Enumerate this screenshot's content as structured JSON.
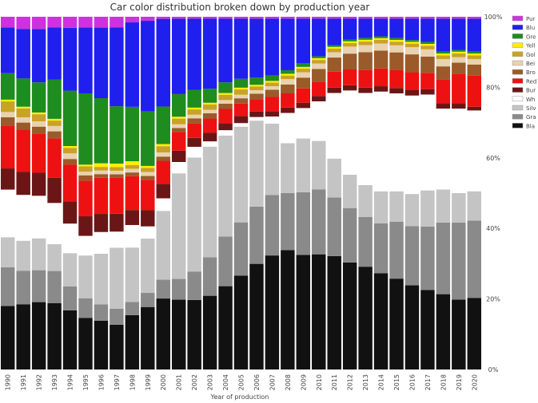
{
  "chart_data": {
    "type": "bar",
    "stacked": true,
    "title": "Car color distribution broken down by production year",
    "xlabel": "Year of production",
    "ylabel": "",
    "ylim": [
      0,
      100
    ],
    "yticks": [
      "0%",
      "20%",
      "40%",
      "60%",
      "80%",
      "100%"
    ],
    "grid": false,
    "legend_position": "right",
    "categories": [
      "1990",
      "1991",
      "1992",
      "1993",
      "1994",
      "1995",
      "1996",
      "1997",
      "1998",
      "1999",
      "2000",
      "2001",
      "2002",
      "2003",
      "2004",
      "2005",
      "2006",
      "2007",
      "2008",
      "2009",
      "2010",
      "2011",
      "2012",
      "2013",
      "2014",
      "2015",
      "2016",
      "2017",
      "2018",
      "2019",
      "2020"
    ],
    "series": [
      {
        "name": "Black",
        "legend_label": "Bla",
        "color": "#111111",
        "values": [
          18,
          18.5,
          19,
          18.5,
          16,
          14.5,
          13.5,
          12.5,
          14.5,
          15.5,
          17,
          18.5,
          19.5,
          21,
          23.5,
          26.5,
          29.5,
          32,
          33.5,
          32,
          32,
          32,
          30.5,
          29,
          27,
          25.5,
          23.5,
          22,
          20.5,
          19,
          19.5
        ]
      },
      {
        "name": "Gray",
        "legend_label": "Gra",
        "color": "#8a8a8a",
        "values": [
          11,
          9.5,
          9,
          9,
          6.5,
          5.5,
          4.5,
          4.5,
          3.5,
          3.5,
          4.5,
          5.5,
          8,
          11,
          14,
          15,
          16,
          17,
          16,
          17.5,
          18,
          16.5,
          15.5,
          14,
          14,
          16,
          16.5,
          17.5,
          19.5,
          21,
          21
        ]
      },
      {
        "name": "Silver",
        "legend_label": "Silv",
        "color": "#c4c4c4",
        "values": [
          8.5,
          8.5,
          9,
          7.5,
          9,
          12,
          14,
          17,
          14.5,
          13.5,
          16.5,
          28,
          32,
          31.5,
          28.5,
          27,
          24,
          20,
          14,
          15,
          13.5,
          11,
          9.5,
          9,
          9,
          8.5,
          9,
          10,
          9,
          8,
          8
        ]
      },
      {
        "name": "White",
        "legend_label": "Wh",
        "color": "#ffffff",
        "values": [
          13.5,
          13,
          12,
          11.5,
          8,
          5.5,
          6,
          4.5,
          6,
          3,
          3,
          3,
          3,
          1.5,
          1.5,
          1,
          1,
          2,
          8.5,
          8.5,
          11,
          18.5,
          24,
          26,
          28,
          27.5,
          27.5,
          26.5,
          22,
          23,
          22
        ]
      },
      {
        "name": "Burgundy",
        "legend_label": "Bur",
        "color": "#6b1616",
        "values": [
          6,
          6.5,
          6.5,
          7,
          6,
          5.5,
          5,
          5,
          4,
          4,
          3.5,
          3,
          2.5,
          2.5,
          2,
          2,
          1.5,
          1.5,
          1.5,
          1.5,
          1.5,
          1.5,
          1.5,
          1.5,
          1.5,
          1.5,
          1.5,
          1.5,
          1.5,
          1.5,
          1
        ]
      },
      {
        "name": "Red",
        "legend_label": "Red",
        "color": "#ee1111",
        "values": [
          12,
          12,
          11,
          11,
          10,
          10,
          10,
          10,
          9,
          7.5,
          5.5,
          5,
          4,
          4,
          4,
          3.5,
          3.5,
          4,
          4,
          4,
          4,
          4.5,
          4.5,
          5,
          5,
          5,
          5,
          4.5,
          6.5,
          8,
          8.5
        ]
      },
      {
        "name": "Brown",
        "legend_label": "Bro",
        "color": "#9a5a2a",
        "values": [
          2.5,
          2,
          2,
          2,
          1.5,
          1.5,
          1,
          1,
          1,
          1,
          1,
          1,
          1.5,
          1.5,
          1.5,
          1.5,
          1.5,
          2,
          2.5,
          3,
          3.5,
          4,
          4.5,
          5,
          5,
          5,
          5,
          4.5,
          3.5,
          3,
          3
        ]
      },
      {
        "name": "Beige",
        "legend_label": "Bei",
        "color": "#e8d2b0",
        "values": [
          1.5,
          1.5,
          1.5,
          1.5,
          1.5,
          1,
          1,
          1,
          1,
          1,
          1,
          1,
          1,
          1,
          1,
          1,
          1,
          1,
          1.5,
          1.5,
          1.5,
          1.5,
          2,
          2,
          2,
          2,
          2,
          2,
          2,
          1.5,
          1.5
        ]
      },
      {
        "name": "Gold",
        "legend_label": "Gol",
        "color": "#c9a227",
        "values": [
          3,
          2.5,
          2,
          1.5,
          1.5,
          1.5,
          1,
          1,
          1,
          1,
          1.5,
          1.5,
          1.5,
          1.5,
          1.5,
          1.5,
          1,
          1,
          1,
          1,
          1,
          1,
          1,
          1,
          1,
          1,
          1,
          1,
          1,
          1,
          1
        ]
      },
      {
        "name": "Yellow",
        "legend_label": "Yell",
        "color": "#ffee00",
        "values": [
          0.5,
          0.5,
          0.5,
          0.5,
          0.5,
          0.5,
          1,
          1,
          1,
          0.5,
          0.5,
          0.5,
          0.5,
          0.5,
          0.5,
          0.5,
          0.5,
          0.5,
          0.5,
          0.5,
          0.5,
          0.5,
          0.5,
          0.5,
          0.5,
          0.5,
          0.5,
          0.5,
          0.5,
          0.5,
          0.5
        ]
      },
      {
        "name": "Green",
        "legend_label": "Gre",
        "color": "#1e8c1e",
        "values": [
          7.5,
          8,
          8.5,
          11,
          15,
          20,
          18,
          16,
          14.5,
          13.5,
          9,
          6,
          5,
          4,
          3,
          2.5,
          2,
          1.5,
          1,
          1,
          0.5,
          0.5,
          0.5,
          0.5,
          0.5,
          0.5,
          0.5,
          0.5,
          0.5,
          0.5,
          0.5
        ]
      },
      {
        "name": "Blue",
        "legend_label": "Blu",
        "color": "#1f1fee",
        "values": [
          13,
          14,
          15,
          14.5,
          17,
          18.5,
          19.5,
          22,
          22.5,
          22.5,
          21,
          20,
          20,
          20,
          18,
          17,
          16.5,
          16,
          14.5,
          12.5,
          10.5,
          7.5,
          6,
          5.5,
          5,
          5.5,
          6,
          6.5,
          9,
          8.5,
          9
        ]
      },
      {
        "name": "Purple",
        "legend_label": "Pur",
        "color": "#cc33dd",
        "values": [
          3,
          3.5,
          3.5,
          3,
          3,
          3,
          3,
          3,
          1.5,
          1,
          0.5,
          0.5,
          0.5,
          0.5,
          0.5,
          0.5,
          0.5,
          0.5,
          0.5,
          0.5,
          0.5,
          0.5,
          0.5,
          0.5,
          0.5,
          0.5,
          0.5,
          0.5,
          0.5,
          0.5,
          0.5
        ]
      }
    ]
  }
}
